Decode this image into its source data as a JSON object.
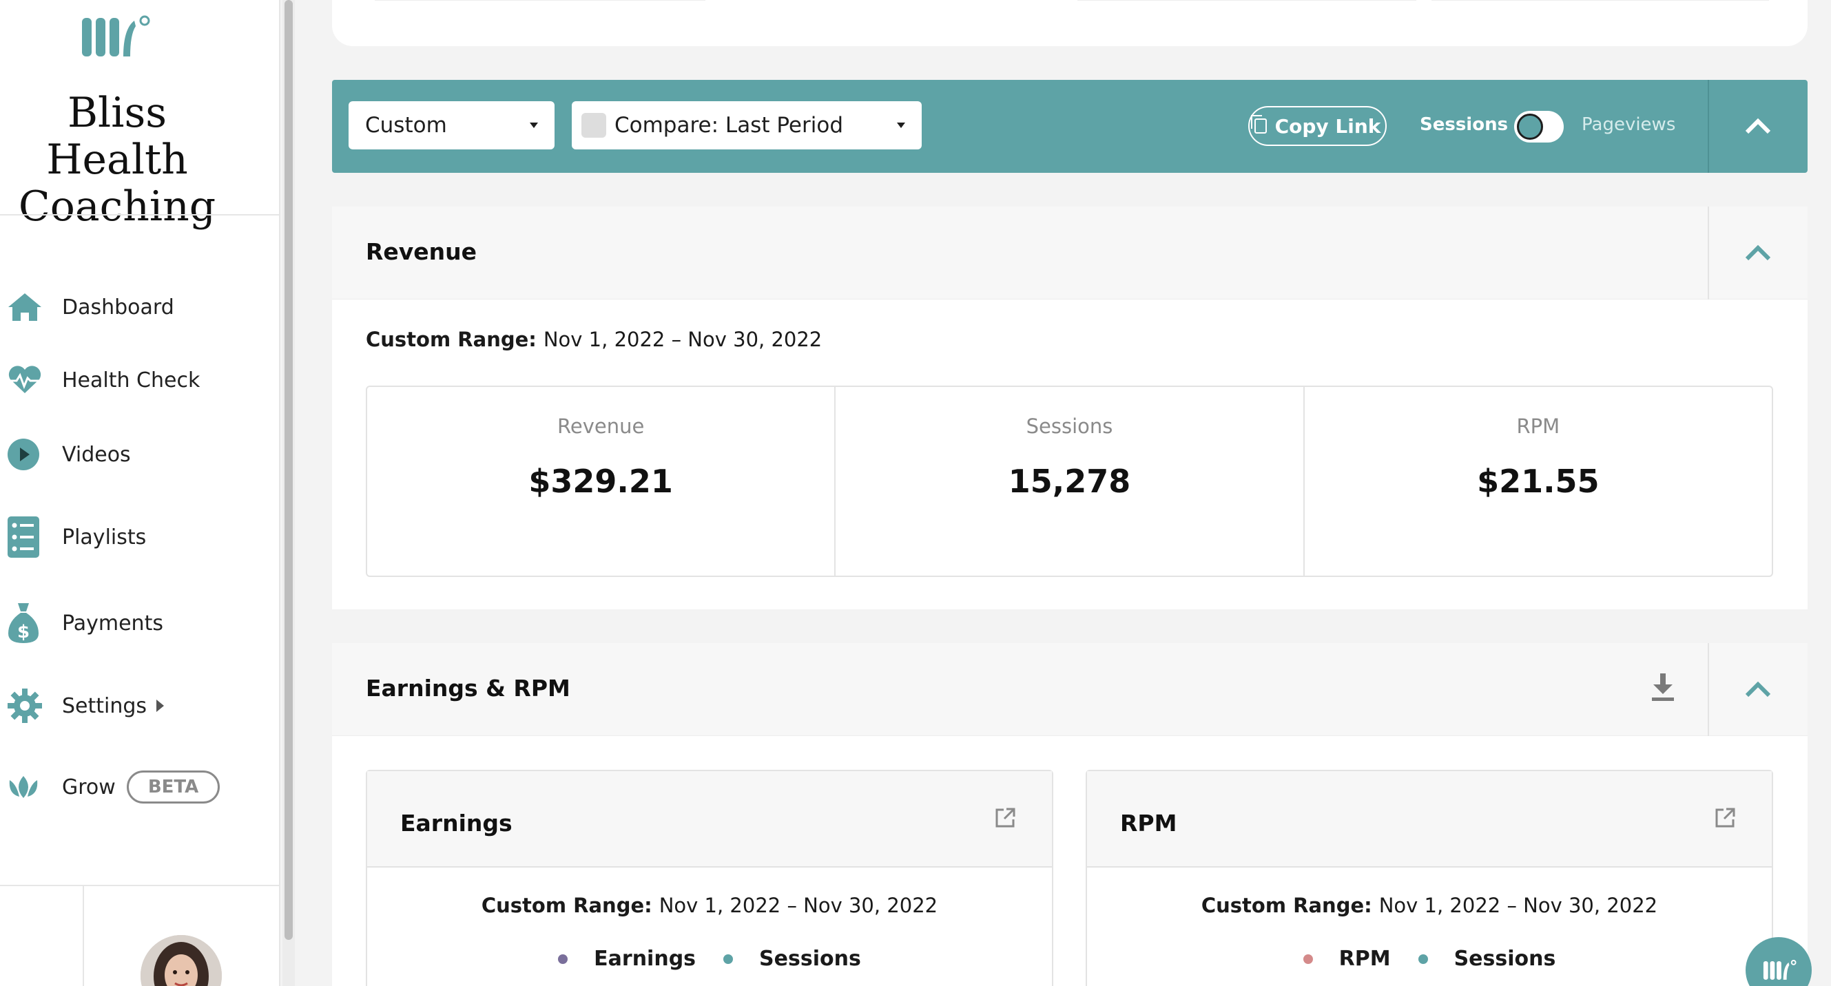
{
  "brand": {
    "line1": "Bliss Health",
    "line2": "Coaching"
  },
  "nav": {
    "dashboard": "Dashboard",
    "health_check": "Health Check",
    "videos": "Videos",
    "playlists": "Playlists",
    "payments": "Payments",
    "settings": "Settings",
    "grow": "Grow",
    "grow_badge": "BETA"
  },
  "filters": {
    "date_select": "Custom",
    "compare_select": "Compare: Last Period",
    "copy_link": "Copy Link",
    "toggle_left": "Sessions",
    "toggle_right": "Pageviews"
  },
  "revenue": {
    "title": "Revenue",
    "range_label": "Custom Range:",
    "range_value": "Nov 1, 2022 – Nov 30, 2022",
    "metrics": [
      {
        "label": "Revenue",
        "value": "$329.21"
      },
      {
        "label": "Sessions",
        "value": "15,278"
      },
      {
        "label": "RPM",
        "value": "$21.55"
      }
    ]
  },
  "earnings_rpm": {
    "title": "Earnings & RPM",
    "earnings": {
      "title": "Earnings",
      "range_label": "Custom Range:",
      "range_value": "Nov 1, 2022 – Nov 30, 2022",
      "legend": [
        "Earnings",
        "Sessions"
      ]
    },
    "rpm": {
      "title": "RPM",
      "range_label": "Custom Range:",
      "range_value": "Nov 1, 2022 – Nov 30, 2022",
      "legend": [
        "RPM",
        "Sessions"
      ]
    }
  },
  "colors": {
    "accent": "#5ea3a6",
    "earnings_dot": "#7a6f9b",
    "sessions_dot": "#5ea3a6",
    "rpm_dot": "#d48a8a"
  }
}
